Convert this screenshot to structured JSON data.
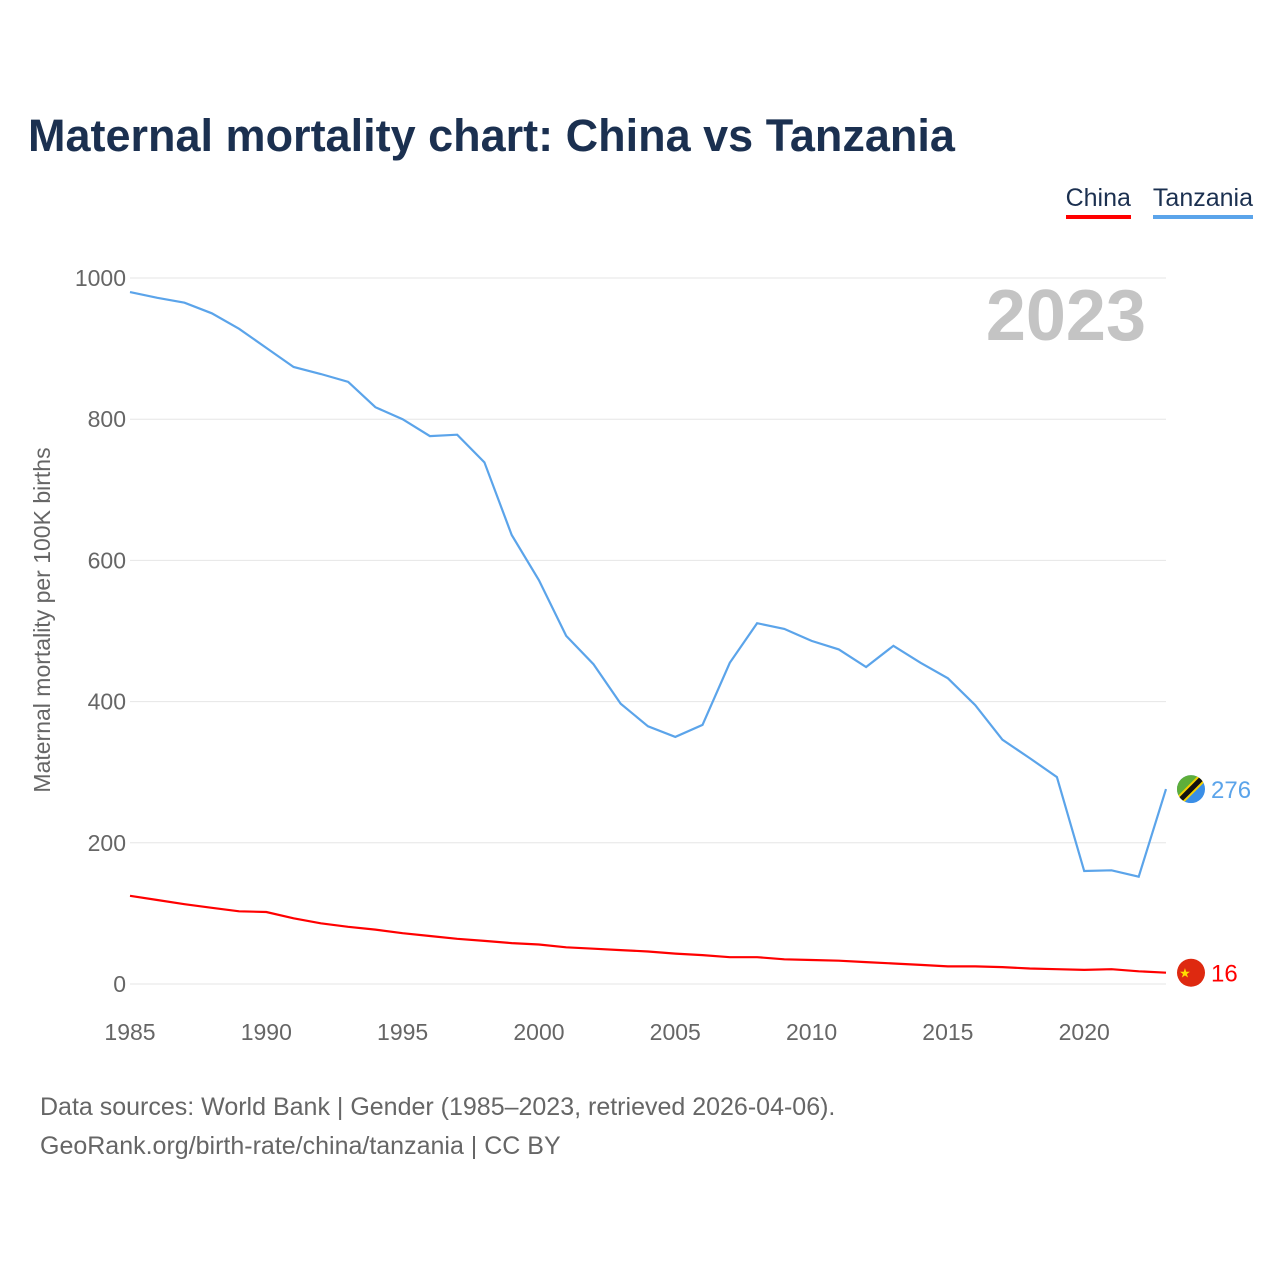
{
  "title": "Maternal mortality chart: China vs Tanzania",
  "year_watermark": "2023",
  "source_line1": "Data sources: World Bank | Gender (1985–2023, retrieved 2026-04-06).",
  "source_line2": "GeoRank.org/birth-rate/china/tanzania | CC BY",
  "chart_data": {
    "type": "line",
    "title": "Maternal mortality chart: China vs Tanzania",
    "xlabel": "",
    "ylabel": "Maternal mortality per 100K births",
    "xlim": [
      1985,
      2023
    ],
    "ylim": [
      0,
      1000
    ],
    "xticks": [
      "1985",
      "1990",
      "1995",
      "2000",
      "2005",
      "2010",
      "2015",
      "2020"
    ],
    "yticks": [
      "0",
      "200",
      "400",
      "600",
      "800",
      "1000"
    ],
    "grid": true,
    "legend_placement": "top-right",
    "x": [
      1985,
      1986,
      1987,
      1988,
      1989,
      1990,
      1991,
      1992,
      1993,
      1994,
      1995,
      1996,
      1997,
      1998,
      1999,
      2000,
      2001,
      2002,
      2003,
      2004,
      2005,
      2006,
      2007,
      2008,
      2009,
      2010,
      2011,
      2012,
      2013,
      2014,
      2015,
      2016,
      2017,
      2018,
      2019,
      2020,
      2021,
      2022,
      2023
    ],
    "series": [
      {
        "name": "China",
        "color": "#ff0000",
        "end_label": "16",
        "values": [
          125,
          119,
          113,
          108,
          103,
          102,
          93,
          86,
          81,
          77,
          72,
          68,
          64,
          61,
          58,
          56,
          52,
          50,
          48,
          46,
          43,
          41,
          38,
          38,
          35,
          34,
          33,
          31,
          29,
          27,
          25,
          25,
          24,
          22,
          21,
          20,
          21,
          18,
          16
        ]
      },
      {
        "name": "Tanzania",
        "color": "#5ba4ea",
        "end_label": "276",
        "values": [
          980,
          972,
          965,
          950,
          928,
          901,
          874,
          864,
          853,
          817,
          800,
          776,
          778,
          739,
          636,
          572,
          493,
          453,
          397,
          365,
          350,
          367,
          455,
          511,
          503,
          486,
          474,
          449,
          479,
          455,
          433,
          395,
          346,
          320,
          293,
          160,
          161,
          152,
          276
        ]
      }
    ]
  }
}
